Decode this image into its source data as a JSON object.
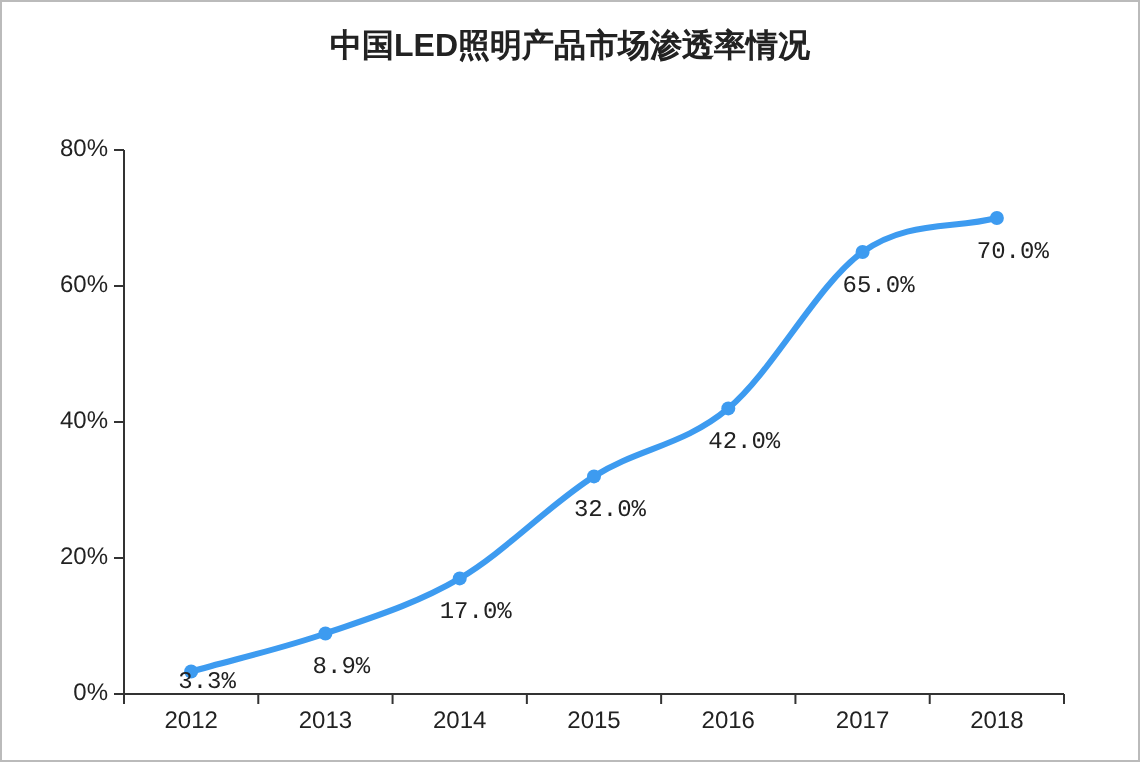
{
  "chart_data": {
    "type": "line",
    "title": "中国LED照明产品市场渗透率情况",
    "categories": [
      "2012",
      "2013",
      "2014",
      "2015",
      "2016",
      "2017",
      "2018"
    ],
    "values": [
      3.3,
      8.9,
      17.0,
      32.0,
      42.0,
      65.0,
      70.0
    ],
    "value_labels": [
      "3.3%",
      "8.9%",
      "17.0%",
      "32.0%",
      "42.0%",
      "65.0%",
      "70.0%"
    ],
    "color": "#3d9bf0",
    "marker": "circle",
    "ylim": [
      0,
      80
    ],
    "yticks": [
      {
        "value": 0,
        "label": "0%"
      },
      {
        "value": 20,
        "label": "20%"
      },
      {
        "value": 40,
        "label": "40%"
      },
      {
        "value": 60,
        "label": "60%"
      },
      {
        "value": 80,
        "label": "80%"
      }
    ]
  }
}
